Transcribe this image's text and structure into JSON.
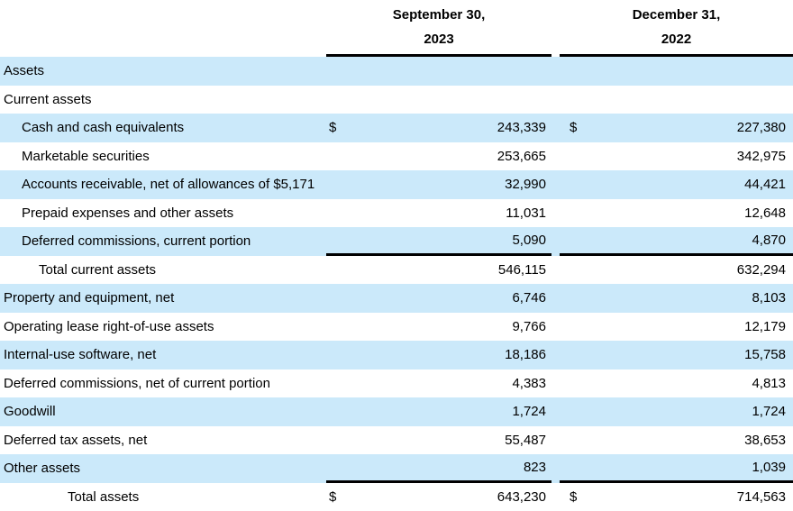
{
  "header": {
    "columns": [
      {
        "line1": "September 30,",
        "line2": "2023"
      },
      {
        "line1": "December 31,",
        "line2": "2022"
      }
    ]
  },
  "colors": {
    "stripe": "#cbe9fa",
    "rule": "#000000",
    "text": "#000000"
  },
  "table": {
    "rows": [
      {
        "label": "Assets",
        "indent": 0,
        "shaded": true,
        "rule_below": false,
        "values": [
          {
            "currency": "",
            "amount": ""
          },
          {
            "currency": "",
            "amount": ""
          }
        ]
      },
      {
        "label": "Current assets",
        "indent": 0,
        "shaded": false,
        "rule_below": false,
        "values": [
          {
            "currency": "",
            "amount": ""
          },
          {
            "currency": "",
            "amount": ""
          }
        ]
      },
      {
        "label": "Cash and cash equivalents",
        "indent": 1,
        "shaded": true,
        "rule_below": false,
        "values": [
          {
            "currency": "$",
            "amount": "243,339"
          },
          {
            "currency": "$",
            "amount": "227,380"
          }
        ]
      },
      {
        "label": "Marketable securities",
        "indent": 1,
        "shaded": false,
        "rule_below": false,
        "values": [
          {
            "currency": "",
            "amount": "253,665"
          },
          {
            "currency": "",
            "amount": "342,975"
          }
        ]
      },
      {
        "label": "Accounts receivable, net of allowances of $5,171",
        "indent": 1,
        "shaded": true,
        "rule_below": false,
        "values": [
          {
            "currency": "",
            "amount": "32,990"
          },
          {
            "currency": "",
            "amount": "44,421"
          }
        ]
      },
      {
        "label": "Prepaid expenses and other assets",
        "indent": 1,
        "shaded": false,
        "rule_below": false,
        "values": [
          {
            "currency": "",
            "amount": "11,031"
          },
          {
            "currency": "",
            "amount": "12,648"
          }
        ]
      },
      {
        "label": "Deferred commissions, current portion",
        "indent": 1,
        "shaded": true,
        "rule_below": true,
        "values": [
          {
            "currency": "",
            "amount": "5,090"
          },
          {
            "currency": "",
            "amount": "4,870"
          }
        ]
      },
      {
        "label": "Total current assets",
        "indent": 2,
        "shaded": false,
        "rule_below": false,
        "values": [
          {
            "currency": "",
            "amount": "546,115"
          },
          {
            "currency": "",
            "amount": "632,294"
          }
        ]
      },
      {
        "label": "Property and equipment, net",
        "indent": 0,
        "shaded": true,
        "rule_below": false,
        "values": [
          {
            "currency": "",
            "amount": "6,746"
          },
          {
            "currency": "",
            "amount": "8,103"
          }
        ]
      },
      {
        "label": "Operating lease right-of-use assets",
        "indent": 0,
        "shaded": false,
        "rule_below": false,
        "values": [
          {
            "currency": "",
            "amount": "9,766"
          },
          {
            "currency": "",
            "amount": "12,179"
          }
        ]
      },
      {
        "label": "Internal-use software, net",
        "indent": 0,
        "shaded": true,
        "rule_below": false,
        "values": [
          {
            "currency": "",
            "amount": "18,186"
          },
          {
            "currency": "",
            "amount": "15,758"
          }
        ]
      },
      {
        "label": "Deferred commissions, net of current portion",
        "indent": 0,
        "shaded": false,
        "rule_below": false,
        "values": [
          {
            "currency": "",
            "amount": "4,383"
          },
          {
            "currency": "",
            "amount": "4,813"
          }
        ]
      },
      {
        "label": "Goodwill",
        "indent": 0,
        "shaded": true,
        "rule_below": false,
        "values": [
          {
            "currency": "",
            "amount": "1,724"
          },
          {
            "currency": "",
            "amount": "1,724"
          }
        ]
      },
      {
        "label": "Deferred tax assets, net",
        "indent": 0,
        "shaded": false,
        "rule_below": false,
        "values": [
          {
            "currency": "",
            "amount": "55,487"
          },
          {
            "currency": "",
            "amount": "38,653"
          }
        ]
      },
      {
        "label": "Other assets",
        "indent": 0,
        "shaded": true,
        "rule_below": true,
        "values": [
          {
            "currency": "",
            "amount": "823"
          },
          {
            "currency": "",
            "amount": "1,039"
          }
        ]
      },
      {
        "label": "Total assets",
        "indent": 3,
        "shaded": false,
        "rule_below": false,
        "values": [
          {
            "currency": "$",
            "amount": "643,230"
          },
          {
            "currency": "$",
            "amount": "714,563"
          }
        ]
      }
    ]
  }
}
